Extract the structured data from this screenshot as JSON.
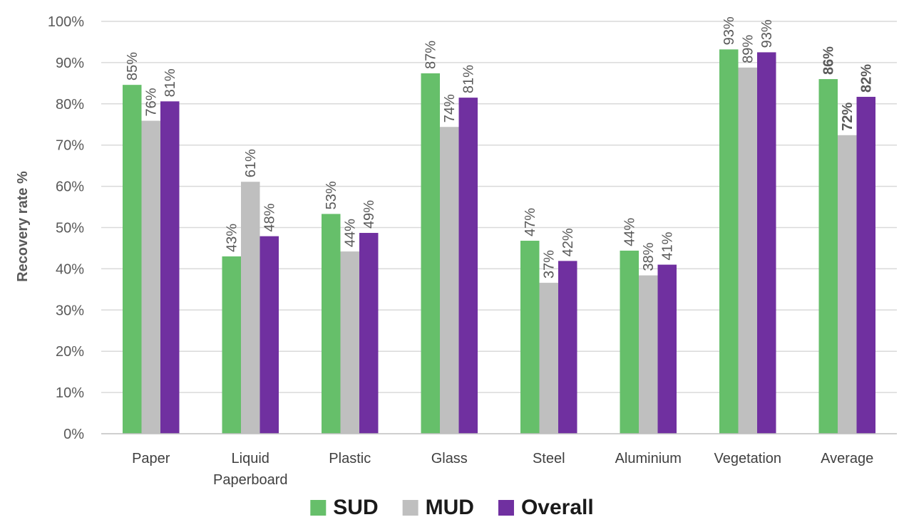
{
  "chart_data": {
    "type": "bar",
    "title": "",
    "xlabel": "",
    "ylabel": "Recovery rate %",
    "ylim": [
      0,
      100
    ],
    "y_ticks": [
      "0%",
      "10%",
      "20%",
      "30%",
      "40%",
      "50%",
      "60%",
      "70%",
      "80%",
      "90%",
      "100%"
    ],
    "categories": [
      [
        "Paper"
      ],
      [
        "Liquid",
        "Paperboard"
      ],
      [
        "Plastic"
      ],
      [
        "Glass"
      ],
      [
        "Steel"
      ],
      [
        "Aluminium"
      ],
      [
        "Vegetation"
      ],
      [
        "Average"
      ]
    ],
    "series": [
      {
        "name": "SUD",
        "color": "#66bf6a",
        "values": [
          84.6,
          43.0,
          53.3,
          87.4,
          46.8,
          44.4,
          93.2,
          86.0
        ],
        "labels": [
          "85%",
          "43%",
          "53%",
          "87%",
          "47%",
          "44%",
          "93%",
          "86%"
        ]
      },
      {
        "name": "MUD",
        "color": "#bfbfbf",
        "values": [
          75.9,
          61.1,
          44.2,
          74.4,
          36.6,
          38.4,
          88.8,
          72.4
        ],
        "labels": [
          "76%",
          "61%",
          "44%",
          "74%",
          "37%",
          "38%",
          "89%",
          "72%"
        ]
      },
      {
        "name": "Overall",
        "color": "#7030a0",
        "values": [
          80.6,
          47.9,
          48.7,
          81.5,
          41.9,
          41.0,
          92.5,
          81.7
        ],
        "labels": [
          "81%",
          "48%",
          "49%",
          "81%",
          "42%",
          "41%",
          "93%",
          "82%"
        ]
      }
    ],
    "bold_label_categories": [
      "Average"
    ],
    "grid": true,
    "legend_position": "bottom"
  }
}
